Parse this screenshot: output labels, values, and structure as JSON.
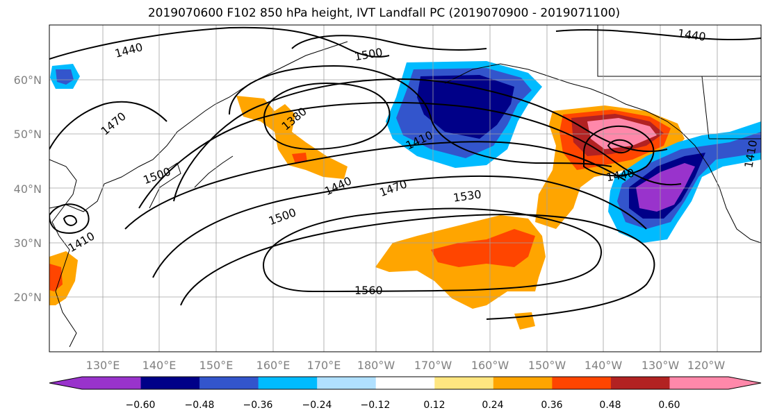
{
  "title": "2019070600 F102 850 hPa height, IVT Landfall PC (2019070900 - 2019071100)",
  "lat_labels": [
    "60°N",
    "50°N",
    "40°N",
    "30°N",
    "20°N"
  ],
  "lon_labels": [
    "130°E",
    "140°E",
    "150°E",
    "160°E",
    "170°E",
    "180°W",
    "170°W",
    "160°W",
    "150°W",
    "140°W",
    "130°W",
    "120°W"
  ],
  "contour_labels": [
    "1440",
    "1500",
    "1440",
    "1470",
    "1380",
    "1410",
    "1500",
    "1440",
    "1470",
    "1530",
    "1440",
    "1500",
    "1410",
    "1560",
    "1410"
  ],
  "colorbar": {
    "tick_labels": [
      "−0.60",
      "−0.48",
      "−0.36",
      "−0.24",
      "−0.12",
      "0.12",
      "0.24",
      "0.36",
      "0.48",
      "0.60"
    ],
    "colors": [
      "#9933cc",
      "#000088",
      "#3355cc",
      "#00bbff",
      "#b0e0ff",
      "#ffffff",
      "#ffe680",
      "#ffa500",
      "#ff4500",
      "#b22222",
      "#ff88aa"
    ]
  }
}
